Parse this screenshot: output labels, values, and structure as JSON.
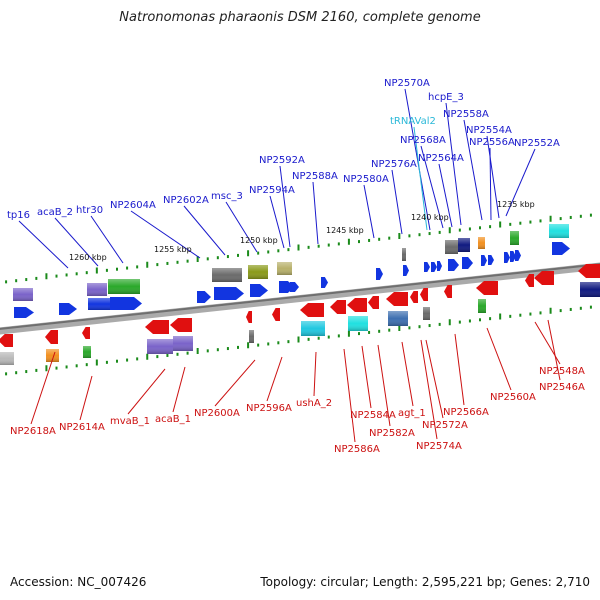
{
  "title": "Natronomonas pharaonis DSM 2160, complete genome",
  "footer": {
    "accession": "Accession: NC_007426",
    "topology": "Topology: circular; Length: 2,595,221 bp; Genes: 2,710"
  },
  "colors": {
    "top_label": "#1a1acc",
    "trna_label": "#2ab8d8",
    "bottom_label": "#cc1111",
    "backbone": "#777777",
    "tick": "#1a8a1a"
  },
  "scale_labels": [
    "1260 kbp",
    "1255 kbp",
    "1250 kbp",
    "1245 kbp",
    "1240 kbp",
    "1235 kbp"
  ],
  "top_labels": [
    {
      "name": "tp16"
    },
    {
      "name": "acaB_2"
    },
    {
      "name": "htr30"
    },
    {
      "name": "NP2604A"
    },
    {
      "name": "NP2602A"
    },
    {
      "name": "msc_3"
    },
    {
      "name": "NP2594A"
    },
    {
      "name": "NP2592A"
    },
    {
      "name": "NP2588A"
    },
    {
      "name": "NP2580A"
    },
    {
      "name": "NP2576A"
    },
    {
      "name": "NP2570A"
    },
    {
      "name": "tRNAVal2",
      "trna": true
    },
    {
      "name": "NP2568A"
    },
    {
      "name": "NP2564A"
    },
    {
      "name": "hcpE_3"
    },
    {
      "name": "NP2558A"
    },
    {
      "name": "NP2556A"
    },
    {
      "name": "NP2554A"
    },
    {
      "name": "NP2552A"
    }
  ],
  "bottom_labels": [
    {
      "name": "NP2618A"
    },
    {
      "name": "NP2614A"
    },
    {
      "name": "mvaB_1"
    },
    {
      "name": "acaB_1"
    },
    {
      "name": "NP2600A"
    },
    {
      "name": "NP2596A"
    },
    {
      "name": "ushA_2"
    },
    {
      "name": "NP2586A"
    },
    {
      "name": "NP2584A"
    },
    {
      "name": "NP2582A"
    },
    {
      "name": "agt_1"
    },
    {
      "name": "NP2572A"
    },
    {
      "name": "NP2574A"
    },
    {
      "name": "NP2566A"
    },
    {
      "name": "NP2560A"
    },
    {
      "name": "NP2548A"
    },
    {
      "name": "NP2546A"
    }
  ]
}
